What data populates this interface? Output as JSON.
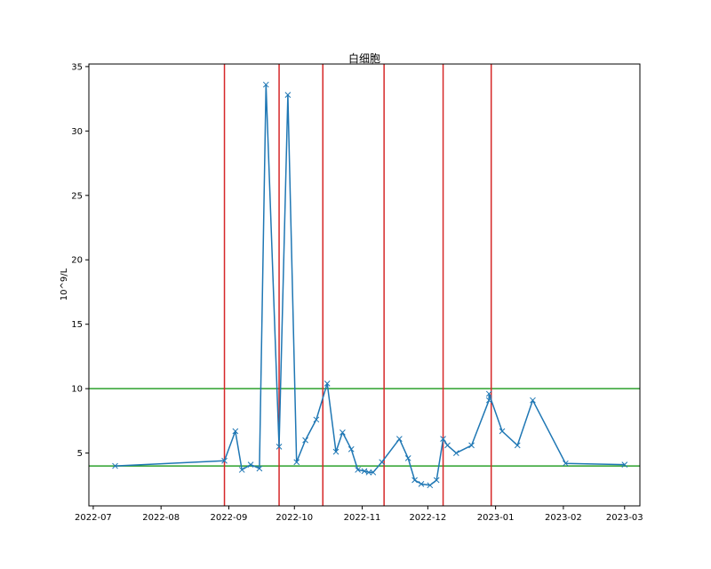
{
  "chart_data": {
    "type": "line",
    "title": "白细胞",
    "xlabel": "",
    "ylabel": "10^9/L",
    "x_range": [
      "2022-06-29",
      "2023-03-08"
    ],
    "ylim": [
      0.9,
      35.2
    ],
    "x_ticks": [
      "2022-07",
      "2022-08",
      "2022-09",
      "2022-10",
      "2022-11",
      "2022-12",
      "2023-01",
      "2023-02",
      "2023-03"
    ],
    "y_ticks": [
      5,
      10,
      15,
      20,
      25,
      30,
      35
    ],
    "grid": false,
    "marker": "x",
    "colors": {
      "series": "#1f77b4",
      "vlines": "#d62728",
      "hlines": "#2ca02c"
    },
    "series": [
      {
        "points": [
          {
            "x": "2022-07-11",
            "y": 4.0
          },
          {
            "x": "2022-08-30",
            "y": 4.4
          },
          {
            "x": "2022-09-04",
            "y": 6.7
          },
          {
            "x": "2022-09-07",
            "y": 3.7
          },
          {
            "x": "2022-09-11",
            "y": 4.1
          },
          {
            "x": "2022-09-15",
            "y": 3.8
          },
          {
            "x": "2022-09-18",
            "y": 33.6
          },
          {
            "x": "2022-09-24",
            "y": 5.5
          },
          {
            "x": "2022-09-28",
            "y": 32.8
          },
          {
            "x": "2022-10-02",
            "y": 4.3
          },
          {
            "x": "2022-10-06",
            "y": 6.0
          },
          {
            "x": "2022-10-11",
            "y": 7.6
          },
          {
            "x": "2022-10-16",
            "y": 10.4
          },
          {
            "x": "2022-10-20",
            "y": 5.1
          },
          {
            "x": "2022-10-23",
            "y": 6.6
          },
          {
            "x": "2022-10-27",
            "y": 5.3
          },
          {
            "x": "2022-10-30",
            "y": 3.7
          },
          {
            "x": "2022-11-02",
            "y": 3.6
          },
          {
            "x": "2022-11-04",
            "y": 3.5
          },
          {
            "x": "2022-11-06",
            "y": 3.5
          },
          {
            "x": "2022-11-10",
            "y": 4.3
          },
          {
            "x": "2022-11-18",
            "y": 6.1
          },
          {
            "x": "2022-11-22",
            "y": 4.6
          },
          {
            "x": "2022-11-25",
            "y": 2.9
          },
          {
            "x": "2022-11-28",
            "y": 2.6
          },
          {
            "x": "2022-12-02",
            "y": 2.5
          },
          {
            "x": "2022-12-05",
            "y": 2.9
          },
          {
            "x": "2022-12-08",
            "y": 6.1
          },
          {
            "x": "2022-12-10",
            "y": 5.6
          },
          {
            "x": "2022-12-14",
            "y": 5.0
          },
          {
            "x": "2022-12-21",
            "y": 5.6
          },
          {
            "x": "2022-12-29",
            "y": 9.1
          },
          {
            "x": "2022-12-29",
            "y": 9.6
          },
          {
            "x": "2023-01-04",
            "y": 6.7
          },
          {
            "x": "2023-01-11",
            "y": 5.6
          },
          {
            "x": "2023-01-18",
            "y": 9.1
          },
          {
            "x": "2023-02-02",
            "y": 4.2
          },
          {
            "x": "2023-03-01",
            "y": 4.1
          }
        ]
      }
    ],
    "vlines": [
      "2022-08-30",
      "2022-09-24",
      "2022-10-14",
      "2022-11-11",
      "2022-12-08",
      "2022-12-30"
    ],
    "hlines": [
      4.0,
      10.0
    ]
  }
}
